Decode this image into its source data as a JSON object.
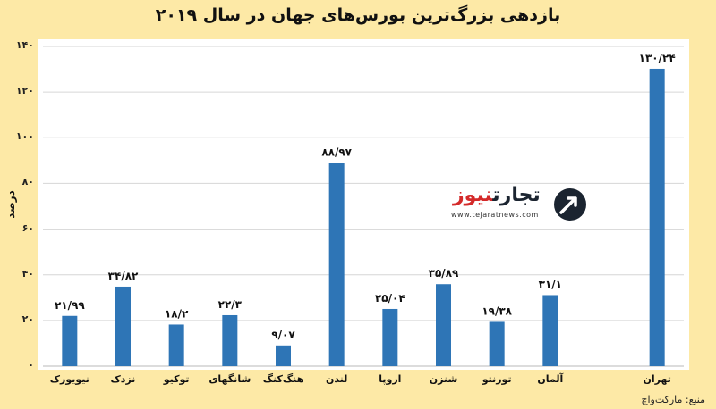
{
  "chart_data": {
    "type": "bar",
    "title": "بازدهی بزرگ‌ترین بورس‌های جهان در سال ۲۰۱۹",
    "xlabel": "",
    "ylabel": "درصد",
    "ylim": [
      0,
      140
    ],
    "yticks": [
      0,
      20,
      40,
      60,
      80,
      100,
      120,
      140
    ],
    "ytick_labels": [
      "۰",
      "۲۰",
      "۴۰",
      "۶۰",
      "۸۰",
      "۱۰۰",
      "۱۲۰",
      "۱۴۰"
    ],
    "grid": true,
    "bar_color": "#2e75b6",
    "categories": [
      "نیویورک",
      "نزدک",
      "توکیو",
      "شانگهای",
      "هنگ‌کنگ",
      "لندن",
      "اروپا",
      "شنزن",
      "تورنتو",
      "آلمان",
      "",
      "تهران"
    ],
    "values": [
      21.99,
      34.82,
      18.2,
      22.3,
      9.07,
      88.97,
      25.04,
      35.89,
      19.38,
      31.1,
      null,
      130.24
    ],
    "value_labels": [
      "۲۱/۹۹",
      "۳۴/۸۲",
      "۱۸/۲",
      "۲۲/۳",
      "۹/۰۷",
      "۸۸/۹۷",
      "۲۵/۰۴",
      "۳۵/۸۹",
      "۱۹/۳۸",
      "۳۱/۱",
      "",
      "۱۳۰/۲۴"
    ]
  },
  "source": "منبع: مارکت‌واچ",
  "logo": {
    "brand_part1": "تجارت",
    "brand_part2": "نیوز",
    "url": "www.tejaratnews.com",
    "icon": "tejarat-arrow-icon",
    "color_dark": "#1b2430",
    "color_red": "#d42a2a"
  }
}
